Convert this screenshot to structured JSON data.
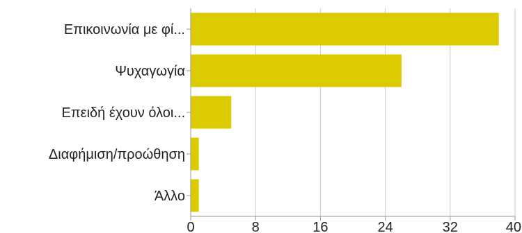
{
  "chart_data": {
    "type": "bar",
    "orientation": "horizontal",
    "title": "",
    "xlabel": "",
    "ylabel": "",
    "categories": [
      "Επικοινωνία με φί...",
      "Ψυχαγωγία",
      "Επειδή έχουν όλοι...",
      "Διαφήμιση/προώθηση",
      "Άλλο"
    ],
    "values": [
      38,
      26,
      5,
      1,
      1
    ],
    "xlim": [
      0,
      40
    ],
    "xticks": [
      "0",
      "8",
      "16",
      "24",
      "32",
      "40"
    ],
    "grid": true,
    "bar_color": "#dccb00",
    "grid_color": "#cccccc",
    "axis_color": "#999999"
  }
}
